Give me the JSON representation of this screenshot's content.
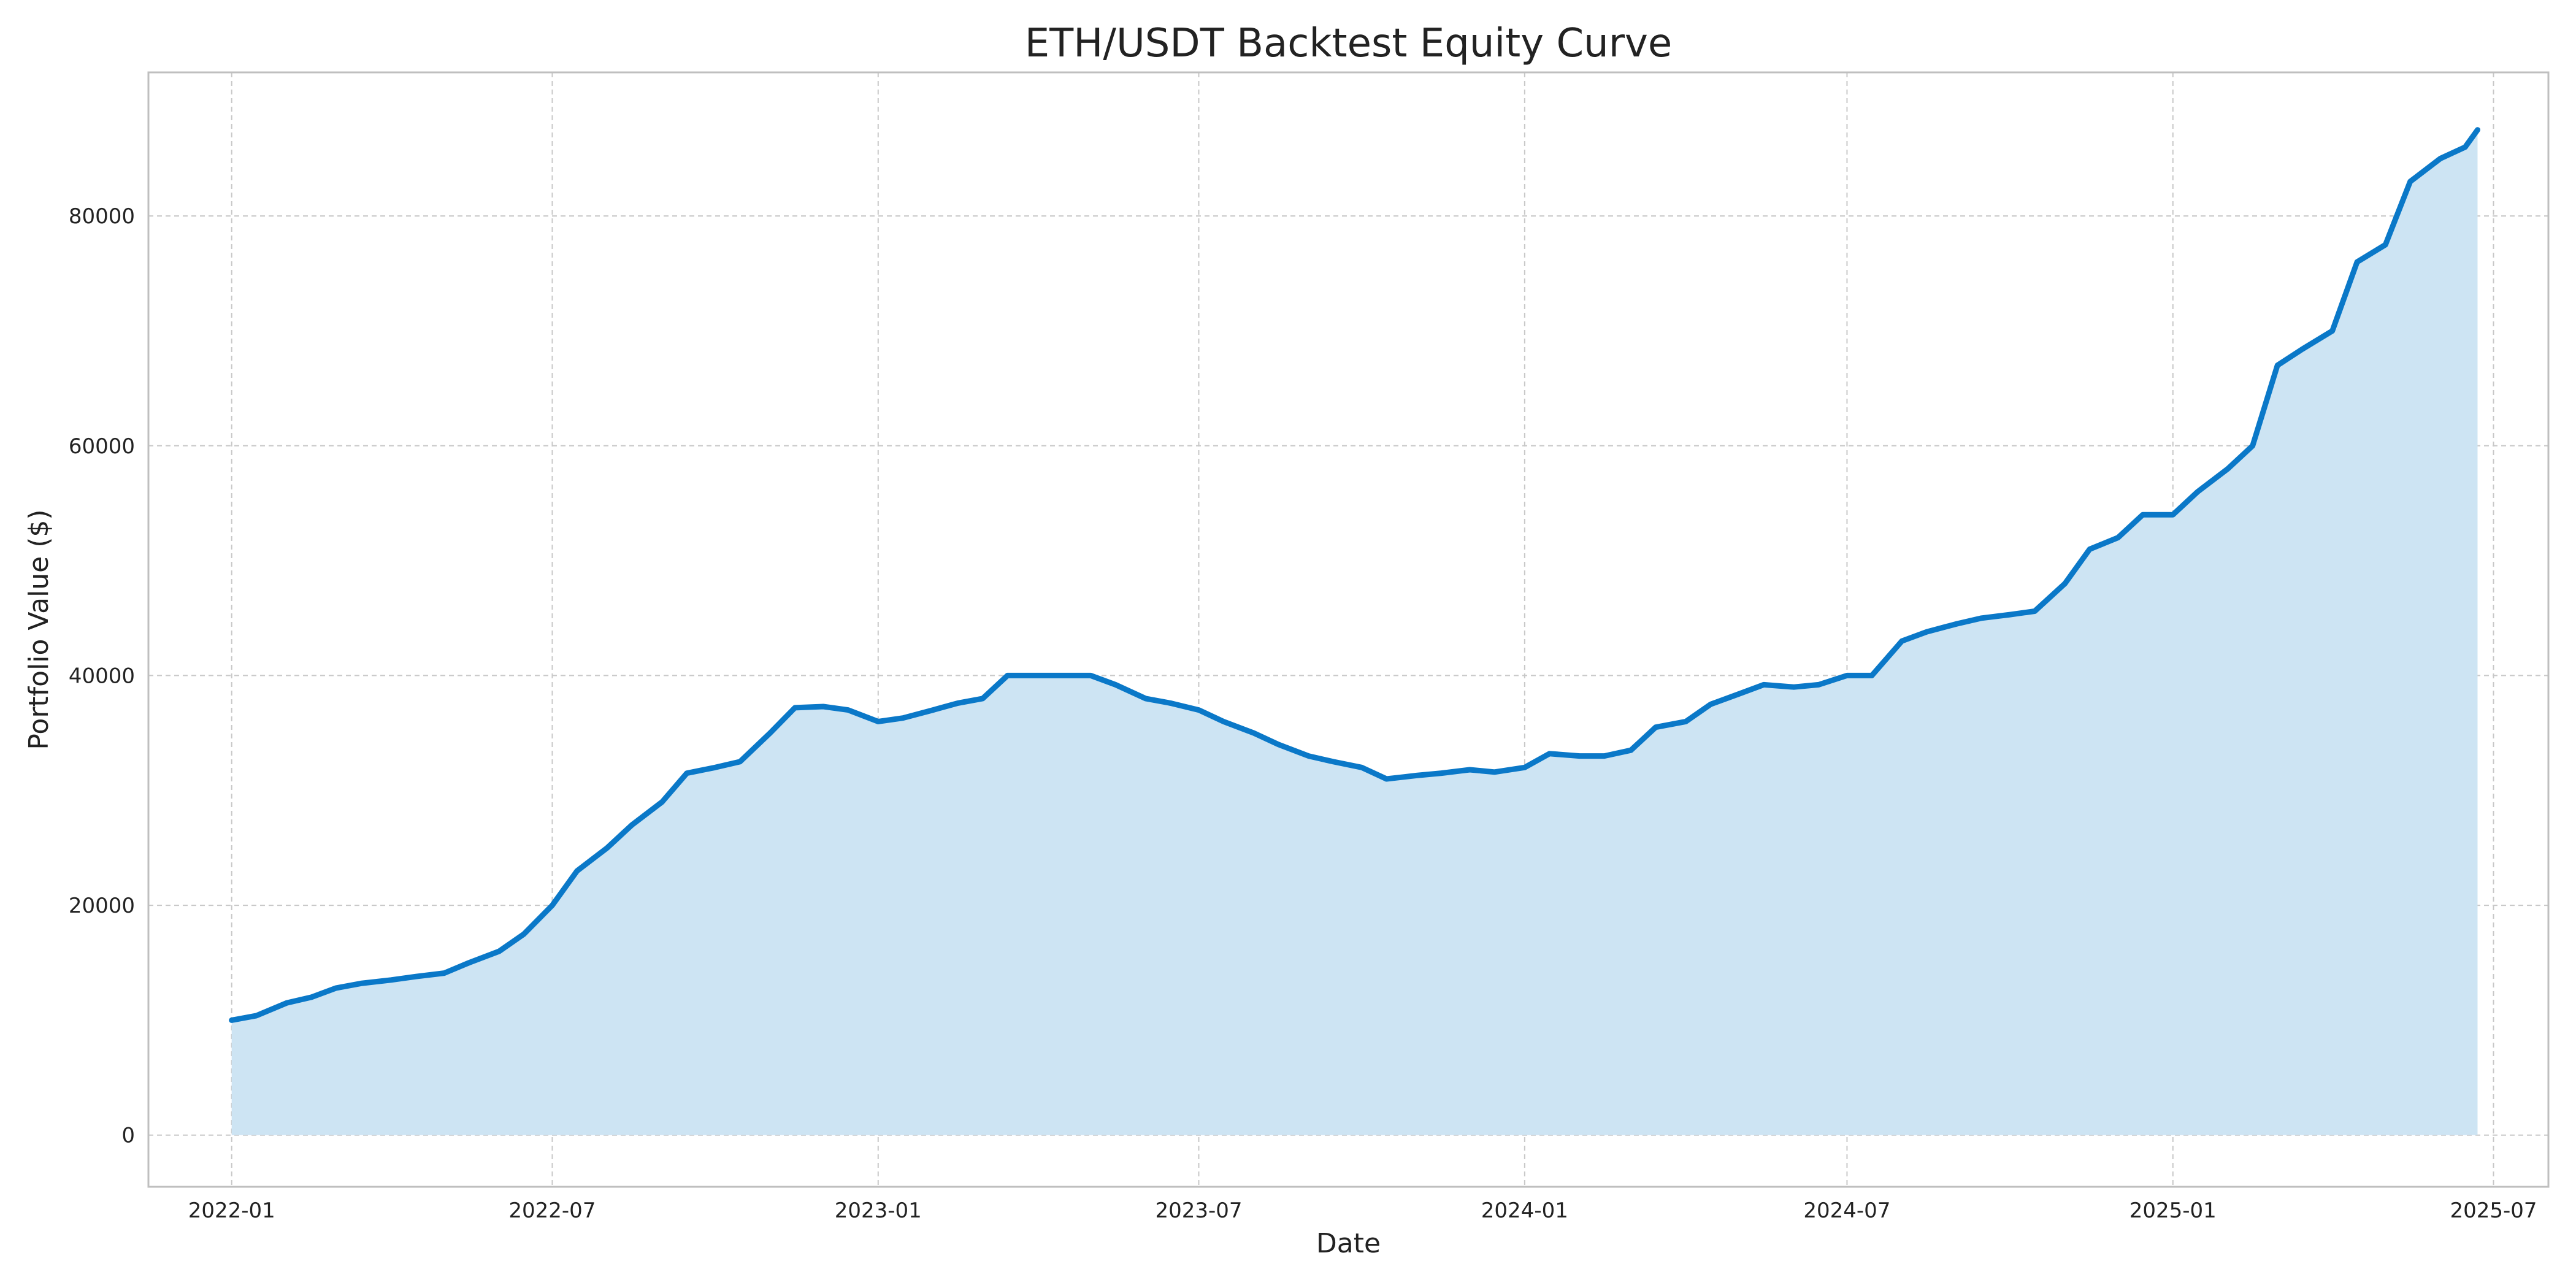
{
  "chart_data": {
    "type": "area",
    "title": "ETH/USDT Backtest Equity Curve",
    "xlabel": "Date",
    "ylabel": "Portfolio Value ($)",
    "xlim": [
      "2021-11-15",
      "2025-08-01"
    ],
    "ylim": [
      -4500,
      92500
    ],
    "x_ticks": [
      "2022-01",
      "2022-07",
      "2023-01",
      "2023-07",
      "2024-01",
      "2024-07",
      "2025-01",
      "2025-07"
    ],
    "y_ticks": [
      0,
      20000,
      40000,
      60000,
      80000
    ],
    "grid": true,
    "colors": {
      "line": "#0a78c8",
      "fill": "#cde4f3",
      "grid": "#c8c8c8",
      "frame": "#bfbfbf"
    },
    "series": [
      {
        "x": [
          "2022-01-01",
          "2022-01-15",
          "2022-02-01",
          "2022-02-15",
          "2022-03-01",
          "2022-03-15",
          "2022-04-01",
          "2022-04-15",
          "2022-05-01",
          "2022-05-15",
          "2022-06-01",
          "2022-06-15",
          "2022-07-01",
          "2022-07-15",
          "2022-08-01",
          "2022-08-15",
          "2022-09-01",
          "2022-09-15",
          "2022-10-01",
          "2022-10-15",
          "2022-11-01",
          "2022-11-15",
          "2022-12-01",
          "2022-12-15",
          "2023-01-01",
          "2023-01-15",
          "2023-02-01",
          "2023-02-15",
          "2023-03-01",
          "2023-03-15",
          "2023-04-01",
          "2023-04-15",
          "2023-05-01",
          "2023-05-15",
          "2023-06-01",
          "2023-06-15",
          "2023-07-01",
          "2023-07-15",
          "2023-08-01",
          "2023-08-15",
          "2023-09-01",
          "2023-09-15",
          "2023-10-01",
          "2023-10-15",
          "2023-11-01",
          "2023-11-15",
          "2023-12-01",
          "2023-12-15",
          "2024-01-01",
          "2024-01-15",
          "2024-02-01",
          "2024-02-15",
          "2024-03-01",
          "2024-03-15",
          "2024-04-01",
          "2024-04-15",
          "2024-05-01",
          "2024-05-15",
          "2024-06-01",
          "2024-06-15",
          "2024-07-01",
          "2024-07-15",
          "2024-08-01",
          "2024-08-15",
          "2024-09-01",
          "2024-09-15",
          "2024-10-01",
          "2024-10-15",
          "2024-11-01",
          "2024-11-15",
          "2024-12-01",
          "2024-12-15",
          "2025-01-01",
          "2025-01-15",
          "2025-02-01",
          "2025-02-15",
          "2025-03-01",
          "2025-03-15",
          "2025-04-01",
          "2025-04-15",
          "2025-05-01",
          "2025-05-15",
          "2025-06-01",
          "2025-06-15",
          "2025-06-22"
        ],
        "values": [
          10000,
          10400,
          11500,
          12000,
          12800,
          13200,
          13500,
          13800,
          14100,
          15000,
          16000,
          17500,
          20000,
          23000,
          25000,
          27000,
          29000,
          31500,
          32000,
          32500,
          35000,
          37200,
          37300,
          37000,
          36000,
          36300,
          37000,
          37600,
          38000,
          40000,
          40000,
          40000,
          40000,
          39200,
          38000,
          37600,
          37000,
          36000,
          35000,
          34000,
          33000,
          32500,
          32000,
          31000,
          31300,
          31500,
          31800,
          31600,
          32000,
          33200,
          33000,
          33000,
          33500,
          35500,
          36000,
          37500,
          38400,
          39200,
          39000,
          39200,
          40000,
          40000,
          43000,
          43800,
          44500,
          45000,
          45300,
          45600,
          48000,
          51000,
          52000,
          54000,
          54000,
          56000,
          58000,
          60000,
          67000,
          68400,
          70000,
          76000,
          77500,
          83000,
          85000,
          86000,
          87500
        ]
      }
    ]
  }
}
